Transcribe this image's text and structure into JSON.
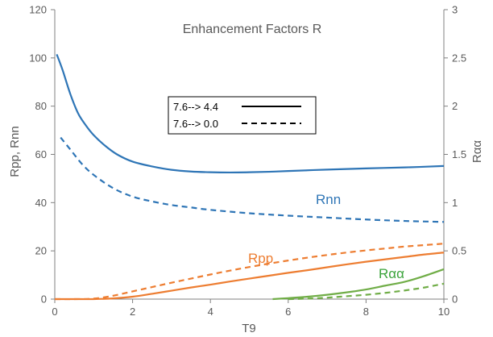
{
  "chart_data": {
    "type": "line",
    "title": "Enhancement Factors  R",
    "xlabel": "T9",
    "ylabel_left": "Rpp, Rnn",
    "ylabel_right": "Rαα",
    "xlim": [
      0,
      10
    ],
    "ylim_left": [
      0,
      120
    ],
    "ylim_right": [
      0,
      3
    ],
    "xticks": [
      "0",
      "2",
      "4",
      "6",
      "8",
      "10"
    ],
    "yticks_left": [
      "0",
      "20",
      "40",
      "60",
      "80",
      "100",
      "120"
    ],
    "yticks_right": [
      "0",
      "0.5",
      "1",
      "1.5",
      "2",
      "2.5",
      "3"
    ],
    "grid": false,
    "legend": {
      "position": "center-left",
      "entries": [
        {
          "label": "7.6--> 4.4",
          "style": "solid"
        },
        {
          "label": "7.6--> 0.0",
          "style": "dashed"
        }
      ]
    },
    "annotations": [
      {
        "text": "Rnn",
        "color": "#2e75b6"
      },
      {
        "text": "Rpp",
        "color": "#ed7d31"
      },
      {
        "text": "Rαα",
        "color": "#3aa33a"
      }
    ],
    "series": [
      {
        "name": "Rnn",
        "transition": "7.6--> 4.4",
        "style": "solid",
        "color": "#2e75b6",
        "axis": "left",
        "x": [
          0.05,
          0.2,
          0.4,
          0.6,
          0.8,
          1.0,
          1.3,
          1.6,
          2.0,
          2.5,
          3.0,
          3.5,
          4.0,
          4.5,
          5.0,
          5.5,
          6.0,
          7.0,
          8.0,
          9.0,
          10.0
        ],
        "y": [
          101.5,
          95,
          85,
          77,
          72,
          68,
          63.5,
          60,
          57,
          55,
          53.6,
          52.9,
          52.6,
          52.5,
          52.6,
          52.8,
          53.1,
          53.7,
          54.2,
          54.6,
          55.2
        ]
      },
      {
        "name": "Rnn",
        "transition": "7.6--> 0.0",
        "style": "dashed",
        "color": "#2e75b6",
        "axis": "left",
        "x": [
          0.15,
          0.4,
          0.7,
          1.0,
          1.5,
          2.0,
          2.5,
          3.0,
          3.5,
          4.0,
          5.0,
          6.0,
          7.0,
          8.0,
          9.0,
          10.0
        ],
        "y": [
          67,
          62,
          56,
          51.5,
          46,
          42.5,
          40.5,
          39,
          38,
          37,
          35.6,
          34.6,
          33.8,
          33,
          32.4,
          32
        ]
      },
      {
        "name": "Rpp",
        "transition": "7.6--> 4.4",
        "style": "solid",
        "color": "#ed7d31",
        "axis": "left",
        "x": [
          0,
          0.5,
          1.0,
          1.5,
          2.0,
          2.5,
          3.0,
          3.5,
          4.0,
          4.5,
          5.0,
          5.5,
          6.0,
          6.5,
          7.0,
          7.5,
          8.0,
          8.5,
          9.0,
          9.5,
          10.0
        ],
        "y": [
          0,
          0,
          0,
          0.3,
          1,
          2.2,
          3.5,
          4.8,
          6,
          7.3,
          8.5,
          9.7,
          10.9,
          12,
          13.2,
          14.4,
          15.5,
          16.5,
          17.5,
          18.5,
          19.3
        ]
      },
      {
        "name": "Rpp",
        "transition": "7.6--> 0.0",
        "style": "dashed",
        "color": "#ed7d31",
        "axis": "left",
        "x": [
          0,
          0.5,
          1.0,
          1.5,
          2.0,
          2.5,
          3.0,
          3.5,
          4.0,
          4.5,
          5.0,
          5.5,
          6.0,
          6.5,
          7.0,
          7.5,
          8.0,
          8.5,
          9.0,
          9.5,
          10.0
        ],
        "y": [
          0,
          0,
          0.2,
          1.4,
          3.2,
          5,
          6.8,
          8.5,
          10.2,
          11.8,
          13.3,
          14.7,
          16,
          17.2,
          18.3,
          19.3,
          20.2,
          21,
          21.8,
          22.4,
          23
        ]
      },
      {
        "name": "Rαα",
        "transition": "7.6--> 4.4",
        "style": "solid",
        "color": "#70ad47",
        "axis": "right",
        "x": [
          5.6,
          6.0,
          6.5,
          7.0,
          7.5,
          8.0,
          8.5,
          9.0,
          9.5,
          10.0
        ],
        "y": [
          0,
          0.01,
          0.025,
          0.045,
          0.07,
          0.1,
          0.14,
          0.18,
          0.24,
          0.31
        ]
      },
      {
        "name": "Rαα",
        "transition": "7.6--> 0.0",
        "style": "dashed",
        "color": "#70ad47",
        "axis": "right",
        "x": [
          6.0,
          6.5,
          7.0,
          7.5,
          8.0,
          8.5,
          9.0,
          9.5,
          10.0
        ],
        "y": [
          0,
          0.005,
          0.015,
          0.03,
          0.045,
          0.065,
          0.09,
          0.12,
          0.16
        ]
      }
    ]
  }
}
